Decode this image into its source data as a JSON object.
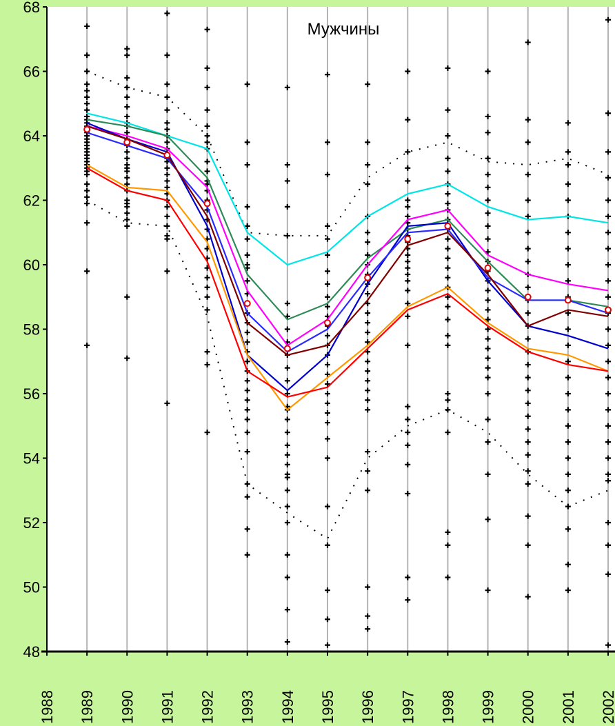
{
  "chart_data": {
    "type": "line",
    "title": "Мужчины",
    "xlabel": "",
    "ylabel": "",
    "x": [
      1988,
      1989,
      1990,
      1991,
      1992,
      1993,
      1994,
      1995,
      1996,
      1997,
      1998,
      1999,
      2000,
      2001,
      2002
    ],
    "x_tick_labels": [
      "1988",
      "1989",
      "1990",
      "1991",
      "1992",
      "1993",
      "1994",
      "1995",
      "1996",
      "1997",
      "1998",
      "1999",
      "2000",
      "2001",
      "2002"
    ],
    "y_tick_labels": [
      "48",
      "50",
      "52",
      "54",
      "56",
      "58",
      "60",
      "62",
      "64",
      "66",
      "68"
    ],
    "ylim": [
      48,
      68
    ],
    "grid": "vertical",
    "legend": "none",
    "colors": {
      "background": "#c6f59b",
      "plot_area": "#ffffff",
      "grid": "#b4b4b4",
      "axis": "#000000",
      "scatter": "#000000",
      "mean_marker": "#e00000"
    },
    "series": [
      {
        "color": "#00e5e5",
        "x": [
          1989,
          1990,
          1991,
          1992,
          1993,
          1994,
          1995,
          1996,
          1997,
          1998,
          1999,
          2000,
          2001,
          2002
        ],
        "values": [
          64.7,
          64.4,
          64.0,
          63.6,
          61.0,
          60.0,
          60.4,
          61.5,
          62.2,
          62.5,
          61.8,
          61.4,
          61.5,
          61.3
        ]
      },
      {
        "color": "#2e8b57",
        "x": [
          1989,
          1990,
          1991,
          1992,
          1993,
          1994,
          1995,
          1996,
          1997,
          1998,
          1999,
          2000,
          2001,
          2002
        ],
        "values": [
          64.5,
          64.3,
          64.0,
          62.7,
          59.7,
          58.3,
          58.8,
          60.2,
          61.1,
          61.4,
          60.1,
          58.9,
          58.9,
          58.7
        ]
      },
      {
        "color": "#ff00ff",
        "x": [
          1989,
          1990,
          1991,
          1992,
          1993,
          1994,
          1995,
          1996,
          1997,
          1998,
          1999,
          2000,
          2001,
          2002
        ],
        "values": [
          64.3,
          64.0,
          63.6,
          62.4,
          59.2,
          57.5,
          58.3,
          60.0,
          61.4,
          61.7,
          60.3,
          59.7,
          59.4,
          59.2
        ]
      },
      {
        "color": "#0000cd",
        "x": [
          1989,
          1990,
          1991,
          1992,
          1993,
          1994,
          1995,
          1996,
          1997,
          1998,
          1999,
          2000,
          2001,
          2002
        ],
        "values": [
          64.4,
          63.9,
          63.5,
          61.2,
          57.2,
          56.1,
          57.2,
          59.4,
          61.2,
          61.3,
          59.5,
          58.1,
          57.8,
          57.4
        ]
      },
      {
        "color": "#2a2aff",
        "x": [
          1989,
          1990,
          1991,
          1992,
          1993,
          1994,
          1995,
          1996,
          1997,
          1998,
          1999,
          2000,
          2001,
          2002
        ],
        "values": [
          64.1,
          63.7,
          63.3,
          61.8,
          58.5,
          57.3,
          58.0,
          59.6,
          61.0,
          61.1,
          59.6,
          58.9,
          58.9,
          58.5
        ]
      },
      {
        "color": "#800000",
        "x": [
          1989,
          1990,
          1991,
          1992,
          1993,
          1994,
          1995,
          1996,
          1997,
          1998,
          1999,
          2000,
          2001,
          2002
        ],
        "values": [
          64.3,
          63.9,
          63.4,
          61.5,
          58.2,
          57.2,
          57.5,
          58.9,
          60.6,
          61.0,
          59.7,
          58.1,
          58.6,
          58.4
        ]
      },
      {
        "color": "#ff9900",
        "x": [
          1989,
          1990,
          1991,
          1992,
          1993,
          1994,
          1995,
          1996,
          1997,
          1998,
          1999,
          2000,
          2001,
          2002
        ],
        "values": [
          63.1,
          62.4,
          62.3,
          60.7,
          57.2,
          55.5,
          56.5,
          57.5,
          58.7,
          59.3,
          58.2,
          57.4,
          57.2,
          56.7
        ]
      },
      {
        "color": "#ff0000",
        "x": [
          1989,
          1990,
          1991,
          1992,
          1993,
          1994,
          1995,
          1996,
          1997,
          1998,
          1999,
          2000,
          2001,
          2002
        ],
        "values": [
          63.0,
          62.3,
          62.0,
          60.1,
          56.7,
          55.9,
          56.2,
          57.4,
          58.6,
          59.1,
          58.1,
          57.3,
          56.9,
          56.7
        ]
      },
      {
        "color": "#000000",
        "dashed": true,
        "x": [
          1989,
          1990,
          1991,
          1992,
          1993,
          1994,
          1995,
          1996,
          1997,
          1998,
          1999,
          2000,
          2001,
          2002
        ],
        "values": [
          66.0,
          65.5,
          65.2,
          64.0,
          61.0,
          60.9,
          60.9,
          62.7,
          63.5,
          63.8,
          63.2,
          63.1,
          63.3,
          62.8
        ]
      },
      {
        "color": "#000000",
        "dashed": true,
        "x": [
          1989,
          1990,
          1991,
          1992,
          1993,
          1994,
          1995,
          1996,
          1997,
          1998,
          1999,
          2000,
          2001,
          2002
        ],
        "values": [
          62.0,
          61.3,
          61.2,
          58.4,
          53.2,
          52.3,
          51.5,
          54.0,
          55.0,
          55.5,
          54.8,
          53.5,
          52.5,
          53.0
        ]
      }
    ],
    "means": {
      "x": [
        1989,
        1990,
        1991,
        1992,
        1993,
        1994,
        1995,
        1996,
        1997,
        1998,
        1999,
        2000,
        2001,
        2002
      ],
      "values": [
        64.2,
        63.8,
        63.4,
        61.9,
        58.8,
        57.4,
        58.2,
        59.6,
        60.8,
        61.2,
        59.9,
        59.0,
        58.9,
        58.6
      ]
    },
    "scatter": {
      "x": [
        1989,
        1989,
        1989,
        1989,
        1989,
        1989,
        1989,
        1989,
        1989,
        1989,
        1989,
        1989,
        1989,
        1989,
        1989,
        1989,
        1989,
        1989,
        1989,
        1989,
        1989,
        1989,
        1989,
        1989,
        1989,
        1989,
        1989,
        1989,
        1989,
        1989,
        1989,
        1989,
        1989,
        1989,
        1990,
        1990,
        1990,
        1990,
        1990,
        1990,
        1990,
        1990,
        1990,
        1990,
        1990,
        1990,
        1990,
        1990,
        1990,
        1990,
        1990,
        1990,
        1990,
        1990,
        1990,
        1990,
        1990,
        1990,
        1990,
        1990,
        1990,
        1990,
        1991,
        1991,
        1991,
        1991,
        1991,
        1991,
        1991,
        1991,
        1991,
        1991,
        1991,
        1991,
        1991,
        1991,
        1991,
        1991,
        1991,
        1991,
        1991,
        1991,
        1991,
        1991,
        1991,
        1991,
        1991,
        1991,
        1992,
        1992,
        1992,
        1992,
        1992,
        1992,
        1992,
        1992,
        1992,
        1992,
        1992,
        1992,
        1992,
        1992,
        1992,
        1992,
        1992,
        1992,
        1992,
        1992,
        1992,
        1992,
        1992,
        1992,
        1992,
        1992,
        1992,
        1992,
        1993,
        1993,
        1993,
        1993,
        1993,
        1993,
        1993,
        1993,
        1993,
        1993,
        1993,
        1993,
        1993,
        1993,
        1993,
        1993,
        1993,
        1993,
        1993,
        1993,
        1993,
        1993,
        1993,
        1993,
        1993,
        1993,
        1993,
        1993,
        1993,
        1993,
        1994,
        1994,
        1994,
        1994,
        1994,
        1994,
        1994,
        1994,
        1994,
        1994,
        1994,
        1994,
        1994,
        1994,
        1994,
        1994,
        1994,
        1994,
        1994,
        1994,
        1994,
        1994,
        1994,
        1994,
        1994,
        1994,
        1994,
        1994,
        1994,
        1994,
        1995,
        1995,
        1995,
        1995,
        1995,
        1995,
        1995,
        1995,
        1995,
        1995,
        1995,
        1995,
        1995,
        1995,
        1995,
        1995,
        1995,
        1995,
        1995,
        1995,
        1995,
        1995,
        1995,
        1995,
        1995,
        1995,
        1995,
        1995,
        1995,
        1995,
        1996,
        1996,
        1996,
        1996,
        1996,
        1996,
        1996,
        1996,
        1996,
        1996,
        1996,
        1996,
        1996,
        1996,
        1996,
        1996,
        1996,
        1996,
        1996,
        1996,
        1996,
        1996,
        1996,
        1996,
        1996,
        1996,
        1996,
        1996,
        1996,
        1996,
        1997,
        1997,
        1997,
        1997,
        1997,
        1997,
        1997,
        1997,
        1997,
        1997,
        1997,
        1997,
        1997,
        1997,
        1997,
        1997,
        1997,
        1997,
        1997,
        1997,
        1997,
        1997,
        1997,
        1997,
        1997,
        1997,
        1997,
        1997,
        1997,
        1997,
        1998,
        1998,
        1998,
        1998,
        1998,
        1998,
        1998,
        1998,
        1998,
        1998,
        1998,
        1998,
        1998,
        1998,
        1998,
        1998,
        1998,
        1998,
        1998,
        1998,
        1998,
        1998,
        1998,
        1998,
        1998,
        1998,
        1998,
        1998,
        1998,
        1998,
        1999,
        1999,
        1999,
        1999,
        1999,
        1999,
        1999,
        1999,
        1999,
        1999,
        1999,
        1999,
        1999,
        1999,
        1999,
        1999,
        1999,
        1999,
        1999,
        1999,
        1999,
        1999,
        1999,
        1999,
        1999,
        1999,
        1999,
        1999,
        1999,
        1999,
        2000,
        2000,
        2000,
        2000,
        2000,
        2000,
        2000,
        2000,
        2000,
        2000,
        2000,
        2000,
        2000,
        2000,
        2000,
        2000,
        2000,
        2000,
        2000,
        2000,
        2000,
        2000,
        2000,
        2000,
        2000,
        2000,
        2000,
        2000,
        2000,
        2000,
        2001,
        2001,
        2001,
        2001,
        2001,
        2001,
        2001,
        2001,
        2001,
        2001,
        2001,
        2001,
        2001,
        2001,
        2001,
        2001,
        2001,
        2001,
        2001,
        2001,
        2001,
        2001,
        2001,
        2001,
        2001,
        2001,
        2001,
        2001,
        2002,
        2002,
        2002,
        2002,
        2002,
        2002,
        2002,
        2002,
        2002,
        2002,
        2002,
        2002,
        2002,
        2002,
        2002,
        2002,
        2002,
        2002,
        2002,
        2002,
        2002,
        2002,
        2002,
        2002,
        2002,
        2002,
        2002,
        2002
      ],
      "y": [
        67.4,
        66.0,
        65.6,
        65.4,
        65.2,
        65.0,
        64.8,
        64.6,
        64.5,
        64.4,
        64.3,
        64.2,
        64.1,
        64.0,
        63.9,
        63.8,
        63.7,
        63.6,
        63.5,
        63.4,
        63.3,
        63.2,
        63.1,
        63.0,
        62.9,
        62.8,
        62.5,
        62.3,
        62.1,
        61.9,
        61.3,
        59.8,
        57.5,
        66.5,
        66.5,
        65.8,
        65.5,
        65.2,
        64.9,
        64.6,
        64.3,
        64.1,
        63.9,
        63.7,
        63.5,
        63.3,
        63.1,
        62.9,
        62.7,
        62.5,
        62.3,
        62.0,
        61.8,
        61.6,
        61.4,
        61.2,
        59.0,
        57.1,
        66.7,
        64.4,
        63.0,
        61.9,
        67.8,
        66.5,
        65.6,
        65.2,
        64.8,
        64.4,
        64.0,
        63.8,
        63.6,
        63.4,
        63.2,
        63.0,
        62.8,
        62.6,
        62.4,
        62.2,
        62.0,
        61.8,
        61.5,
        61.2,
        60.9,
        60.8,
        59.8,
        55.7,
        64.2,
        63.3,
        67.3,
        66.1,
        65.5,
        64.8,
        64.3,
        64.0,
        63.6,
        63.2,
        62.9,
        62.6,
        62.3,
        62.0,
        61.7,
        61.4,
        61.1,
        60.8,
        60.5,
        60.2,
        59.9,
        59.6,
        59.3,
        59.0,
        58.6,
        57.3,
        56.9,
        54.8,
        63.8,
        62.5,
        65.6,
        63.8,
        63.1,
        61.8,
        61.2,
        60.8,
        60.3,
        59.9,
        59.5,
        59.1,
        58.8,
        58.5,
        58.2,
        57.9,
        57.6,
        57.3,
        57.0,
        56.7,
        56.4,
        56.1,
        55.8,
        55.5,
        55.2,
        54.8,
        54.2,
        53.2,
        52.8,
        51.8,
        51.0,
        60.0,
        65.5,
        63.1,
        62.6,
        61.8,
        60.9,
        58.8,
        58.4,
        58.0,
        57.6,
        57.2,
        56.8,
        56.4,
        56.0,
        55.6,
        55.2,
        54.8,
        54.4,
        54.1,
        53.8,
        53.5,
        53.4,
        53.0,
        52.5,
        52.0,
        51.0,
        50.3,
        49.3,
        48.3,
        57.4,
        55.5,
        65.9,
        63.8,
        62.8,
        61.2,
        60.8,
        60.3,
        59.8,
        59.4,
        59.0,
        58.7,
        58.4,
        58.1,
        57.8,
        57.5,
        57.2,
        56.9,
        56.6,
        56.3,
        56.0,
        55.7,
        55.4,
        55.1,
        54.6,
        54.0,
        52.5,
        51.3,
        49.9,
        49.0,
        48.2,
        58.2,
        65.6,
        63.8,
        63.1,
        62.5,
        61.5,
        61.0,
        60.7,
        60.3,
        60.0,
        59.7,
        59.4,
        59.1,
        58.8,
        58.5,
        58.2,
        57.9,
        57.6,
        57.3,
        57.0,
        56.7,
        56.4,
        56.1,
        55.8,
        55.5,
        54.2,
        53.6,
        53.0,
        50.0,
        49.1,
        48.7,
        66.0,
        64.5,
        63.5,
        63.0,
        62.6,
        62.0,
        61.8,
        61.5,
        61.3,
        61.1,
        60.9,
        60.7,
        60.5,
        60.3,
        60.1,
        59.9,
        59.7,
        59.5,
        59.2,
        58.8,
        58.4,
        57.5,
        55.6,
        55.2,
        54.8,
        54.4,
        53.8,
        52.9,
        50.3,
        49.6,
        66.1,
        64.8,
        64.0,
        63.3,
        62.9,
        62.5,
        62.2,
        61.9,
        61.7,
        61.4,
        61.1,
        60.8,
        60.5,
        60.2,
        59.9,
        59.6,
        59.3,
        59.0,
        58.7,
        58.3,
        57.8,
        57.5,
        56.0,
        55.8,
        55.5,
        54.8,
        51.7,
        51.3,
        50.3,
        61.2,
        66.0,
        64.6,
        64.1,
        63.3,
        62.8,
        62.4,
        62.0,
        61.6,
        61.2,
        60.8,
        60.4,
        60.1,
        59.8,
        59.5,
        59.2,
        58.9,
        58.6,
        58.3,
        58.0,
        57.7,
        57.4,
        57.1,
        56.8,
        56.5,
        56.0,
        55.2,
        54.5,
        53.5,
        52.1,
        49.9,
        66.9,
        64.5,
        63.8,
        62.8,
        62.0,
        61.5,
        61.0,
        60.5,
        60.1,
        59.7,
        59.3,
        58.9,
        58.5,
        58.1,
        57.7,
        57.3,
        56.9,
        56.5,
        56.1,
        55.7,
        55.3,
        54.9,
        54.5,
        54.1,
        53.6,
        53.2,
        52.2,
        51.3,
        49.7,
        59.0,
        64.4,
        63.5,
        63.1,
        62.5,
        62.0,
        61.5,
        61.0,
        60.5,
        60.0,
        59.5,
        59.0,
        58.5,
        58.0,
        57.5,
        57.0,
        56.5,
        56.0,
        55.5,
        55.0,
        54.5,
        54.0,
        53.5,
        53.0,
        52.5,
        51.8,
        50.7,
        49.9,
        58.9,
        67.6,
        64.7,
        63.5,
        62.7,
        62.0,
        61.5,
        61.0,
        60.5,
        60.0,
        59.5,
        59.0,
        58.5,
        58.0,
        57.5,
        57.0,
        56.5,
        56.0,
        55.5,
        55.0,
        54.5,
        54.0,
        53.5,
        53.3,
        52.0,
        51.3,
        50.4,
        48.2,
        58.6
      ]
    }
  }
}
